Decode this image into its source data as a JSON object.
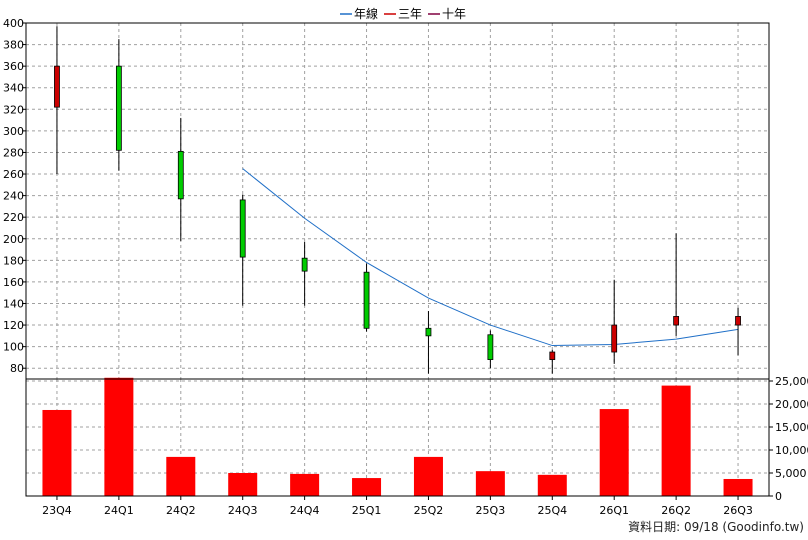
{
  "chart_data": {
    "type": "candlestick+bar",
    "legend": {
      "placement": "top-center",
      "items": [
        {
          "name": "年線",
          "color": "#1f6fc7"
        },
        {
          "name": "三年",
          "color": "#cc0000"
        },
        {
          "name": "十年",
          "color": "#800040"
        }
      ]
    },
    "categories": [
      "23Q4",
      "24Q1",
      "24Q2",
      "24Q3",
      "24Q4",
      "25Q1",
      "25Q2",
      "25Q3",
      "25Q4",
      "26Q1",
      "26Q2",
      "26Q3"
    ],
    "price": {
      "ylim": [
        70,
        400
      ],
      "ticks": [
        80,
        100,
        120,
        140,
        160,
        180,
        200,
        220,
        240,
        260,
        280,
        300,
        320,
        340,
        360,
        380,
        400
      ],
      "candles": [
        {
          "open": 322,
          "high": 397,
          "low": 260,
          "close": 360
        },
        {
          "open": 360,
          "high": 385,
          "low": 263,
          "close": 282
        },
        {
          "open": 281,
          "high": 312,
          "low": 198,
          "close": 237
        },
        {
          "open": 236,
          "high": 241,
          "low": 138,
          "close": 183
        },
        {
          "open": 182,
          "high": 197,
          "low": 138,
          "close": 170
        },
        {
          "open": 169,
          "high": 177,
          "low": 114,
          "close": 117
        },
        {
          "open": 117,
          "high": 133,
          "low": 75,
          "close": 110
        },
        {
          "open": 111,
          "high": 115,
          "low": 80,
          "close": 88
        },
        {
          "open": 88,
          "high": 97,
          "low": 75,
          "close": 95
        },
        {
          "open": 95,
          "high": 162,
          "low": 84,
          "close": 120
        },
        {
          "open": 120,
          "high": 205,
          "low": 110,
          "close": 128
        },
        {
          "open": 120,
          "high": 136,
          "low": 92,
          "close": 128
        }
      ],
      "annual_line": [
        null,
        null,
        null,
        265,
        219,
        178,
        145,
        120,
        101,
        102,
        107,
        116
      ]
    },
    "volume": {
      "ylim": [
        0,
        25000
      ],
      "ticks": [
        0,
        5000,
        10000,
        15000,
        20000,
        25000
      ],
      "tick_labels": [
        "0",
        "5,000",
        "10,000",
        "15,000",
        "20,000",
        "25,000"
      ],
      "values": [
        18700,
        25700,
        8500,
        5000,
        4800,
        3900,
        8500,
        5400,
        4600,
        18900,
        24000,
        3700
      ]
    },
    "colors": {
      "up": "#cc0000",
      "down": "#00cc00",
      "volume": "#ff0000",
      "annual": "#1f6fc7"
    },
    "footer": "資料日期: 09/18 (Goodinfo.tw)"
  }
}
